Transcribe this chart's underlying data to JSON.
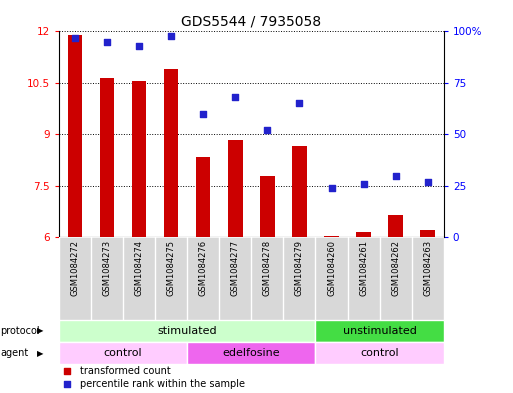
{
  "title": "GDS5544 / 7935058",
  "samples": [
    "GSM1084272",
    "GSM1084273",
    "GSM1084274",
    "GSM1084275",
    "GSM1084276",
    "GSM1084277",
    "GSM1084278",
    "GSM1084279",
    "GSM1084260",
    "GSM1084261",
    "GSM1084262",
    "GSM1084263"
  ],
  "transformed_count": [
    11.9,
    10.65,
    10.55,
    10.9,
    8.35,
    8.85,
    7.8,
    8.65,
    6.05,
    6.15,
    6.65,
    6.2
  ],
  "percentile_rank": [
    97,
    95,
    93,
    98,
    60,
    68,
    52,
    65,
    24,
    26,
    30,
    27
  ],
  "ylim_left": [
    6,
    12
  ],
  "ylim_right": [
    0,
    100
  ],
  "yticks_left": [
    6,
    7.5,
    9,
    10.5,
    12
  ],
  "yticks_right": [
    0,
    25,
    50,
    75,
    100
  ],
  "ytick_labels_right": [
    "0",
    "25",
    "50",
    "75",
    "100%"
  ],
  "bar_color": "#cc0000",
  "dot_color": "#2222cc",
  "bar_bottom": 6,
  "protocol_groups": [
    {
      "label": "stimulated",
      "start": 0,
      "end": 8,
      "color": "#ccffcc"
    },
    {
      "label": "unstimulated",
      "start": 8,
      "end": 12,
      "color": "#44dd44"
    }
  ],
  "agent_groups": [
    {
      "label": "control",
      "start": 0,
      "end": 4,
      "color": "#ffccff"
    },
    {
      "label": "edelfosine",
      "start": 4,
      "end": 8,
      "color": "#ee66ee"
    },
    {
      "label": "control",
      "start": 8,
      "end": 12,
      "color": "#ffccff"
    }
  ],
  "background_color": "#ffffff",
  "title_fontsize": 10,
  "tick_fontsize": 7.5,
  "sample_fontsize": 6,
  "row_fontsize": 8
}
